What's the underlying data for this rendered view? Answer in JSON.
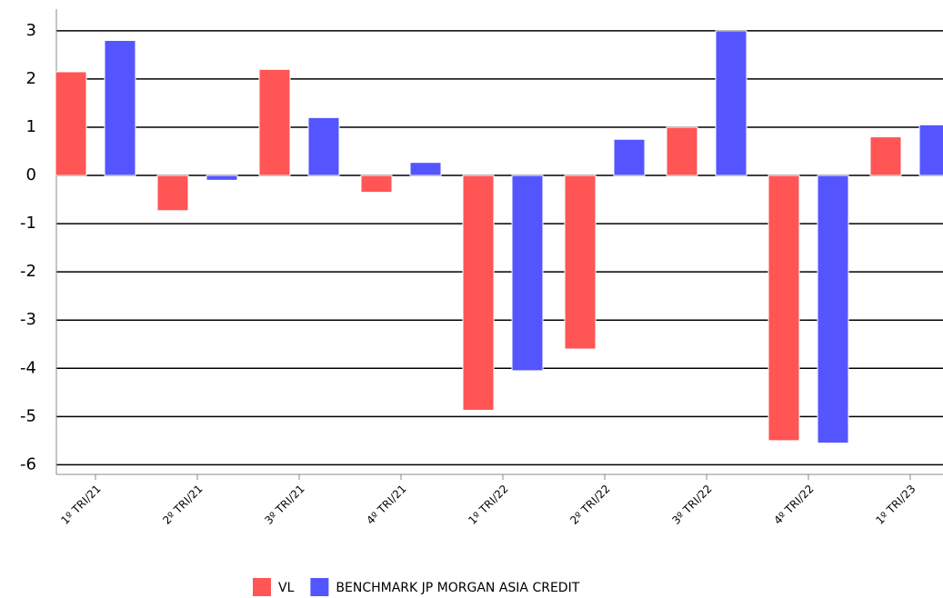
{
  "chart_data": {
    "type": "bar",
    "categories": [
      "1º TRI/21",
      "2º TRI/21",
      "3º TRI/21",
      "4º TRI/21",
      "1º TRI/22",
      "2º TRI/22",
      "3º TRI/22",
      "4º TRI/22",
      "1º TRI/23"
    ],
    "series": [
      {
        "name": "VL",
        "color": "#ff5555",
        "values": [
          2.15,
          -0.73,
          2.2,
          -0.35,
          -4.87,
          -3.6,
          1.0,
          -5.5,
          0.8
        ]
      },
      {
        "name": "BENCHMARK JP MORGAN ASIA CREDIT",
        "color": "#5555ff",
        "values": [
          2.8,
          -0.1,
          1.2,
          0.27,
          -4.05,
          0.75,
          3.0,
          -5.55,
          1.05
        ]
      }
    ],
    "ylim": [
      -6.2,
      3.45
    ],
    "yticks": [
      -6,
      -5,
      -4,
      -3,
      -2,
      -1,
      0,
      1,
      2,
      3
    ],
    "grid": true,
    "legend": "bottom"
  }
}
